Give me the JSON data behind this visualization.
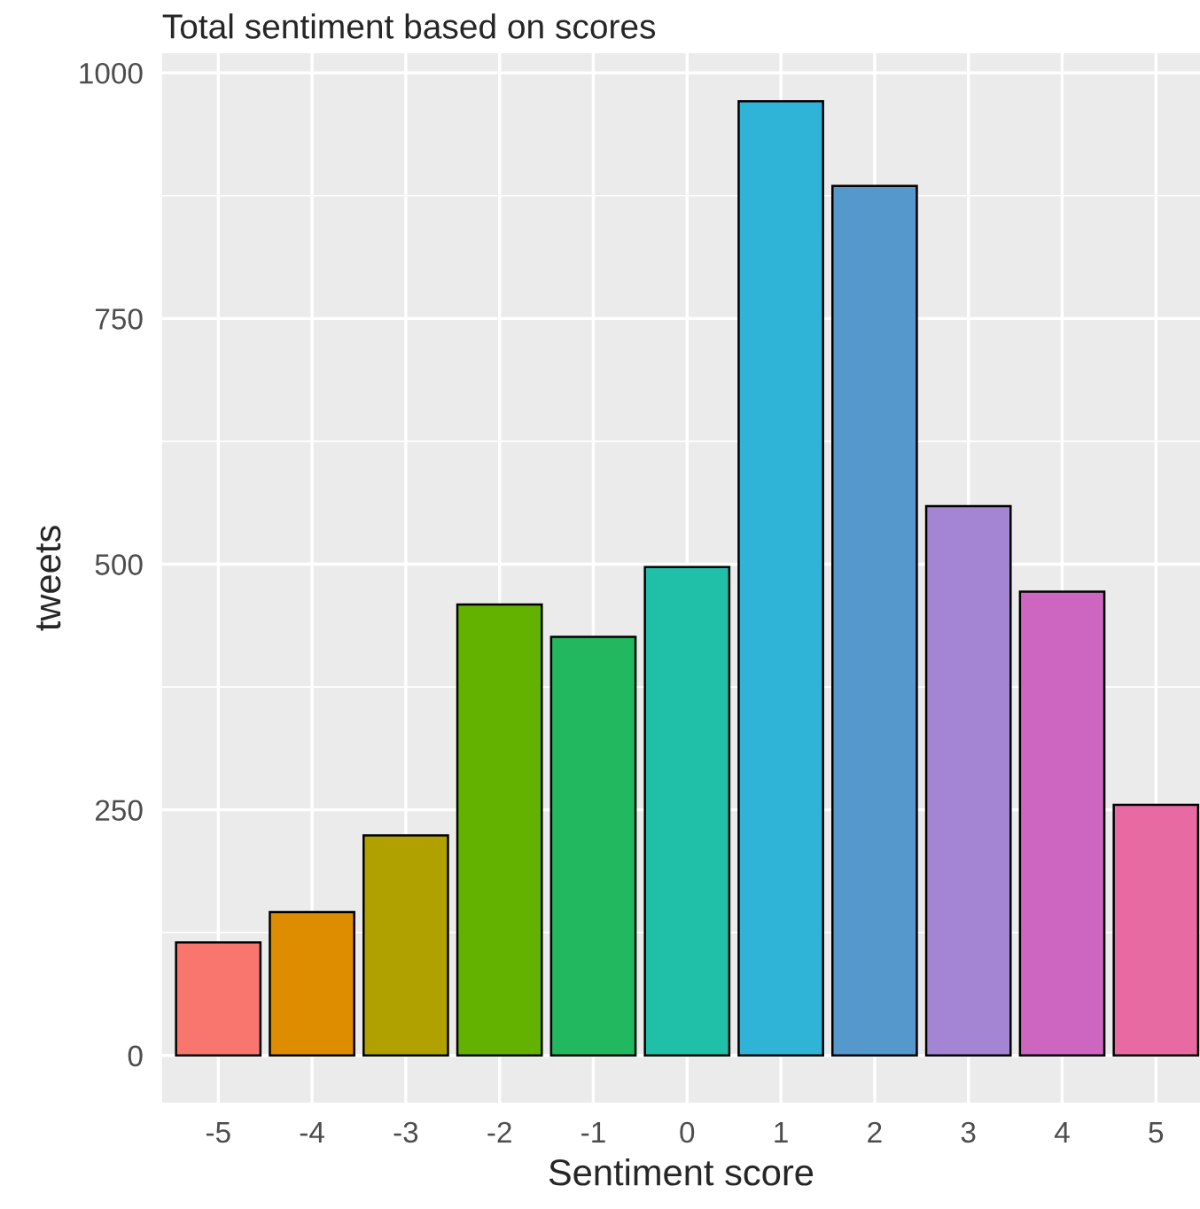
{
  "chart_data": {
    "type": "bar",
    "title": "Total sentiment based on scores",
    "xlabel": "Sentiment score",
    "ylabel": "tweets",
    "categories": [
      "-5",
      "-4",
      "-3",
      "-2",
      "-1",
      "0",
      "1",
      "2",
      "3",
      "4",
      "5"
    ],
    "values": [
      115,
      146,
      224,
      459,
      426,
      497,
      971,
      885,
      559,
      472,
      255
    ],
    "colors": [
      "#f8766d",
      "#de8c00",
      "#b0a100",
      "#64b200",
      "#22b85f",
      "#1fbfa8",
      "#2fb4d8",
      "#5599cc",
      "#a385d3",
      "#cc66c0",
      "#e86aa3"
    ],
    "ylim": [
      -48,
      1020
    ],
    "yticks": [
      0,
      250,
      500,
      750,
      1000
    ],
    "grid": true,
    "legend": false
  }
}
